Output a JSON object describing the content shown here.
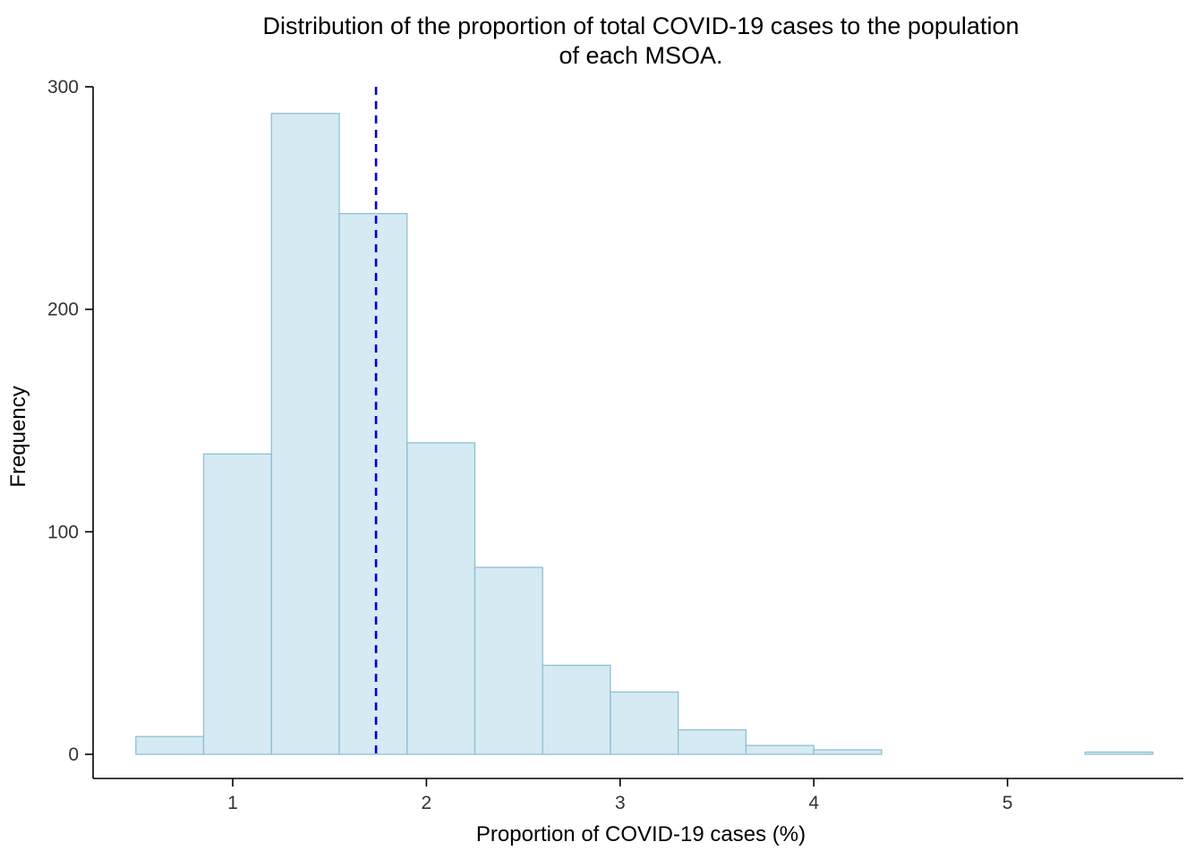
{
  "chart_data": {
    "type": "histogram",
    "title": "Distribution of the proportion of total COVID-19 cases to the population of each MSOA.",
    "title_lines": [
      "Distribution of the proportion of total COVID-19 cases to the population",
      "of each MSOA."
    ],
    "xlabel": "Proportion of COVID-19 cases (%)",
    "ylabel": "Frequency",
    "binwidth": 0.35,
    "bins": [
      {
        "start": 0.5,
        "count": 8
      },
      {
        "start": 0.85,
        "count": 135
      },
      {
        "start": 1.2,
        "count": 288
      },
      {
        "start": 1.55,
        "count": 243
      },
      {
        "start": 1.9,
        "count": 140
      },
      {
        "start": 2.25,
        "count": 84
      },
      {
        "start": 2.6,
        "count": 40
      },
      {
        "start": 2.95,
        "count": 28
      },
      {
        "start": 3.3,
        "count": 11
      },
      {
        "start": 3.65,
        "count": 4
      },
      {
        "start": 4.0,
        "count": 2
      },
      {
        "start": 4.35,
        "count": 0
      },
      {
        "start": 4.7,
        "count": 0
      },
      {
        "start": 5.05,
        "count": 0
      },
      {
        "start": 5.4,
        "count": 1
      }
    ],
    "xticks": [
      1,
      2,
      3,
      4,
      5
    ],
    "yticks": [
      0,
      100,
      200,
      300
    ],
    "xlim": [
      0.28,
      5.9
    ],
    "ylim": [
      0,
      300
    ],
    "vline": {
      "x": 1.74,
      "style": "dashed"
    },
    "legend": "none",
    "grid": false,
    "colors": {
      "bar_fill": "#d5eaf3",
      "bar_stroke": "#8fbfd2",
      "axis": "#000000",
      "vline": "#0000cd",
      "tick_text": "#333333"
    }
  }
}
